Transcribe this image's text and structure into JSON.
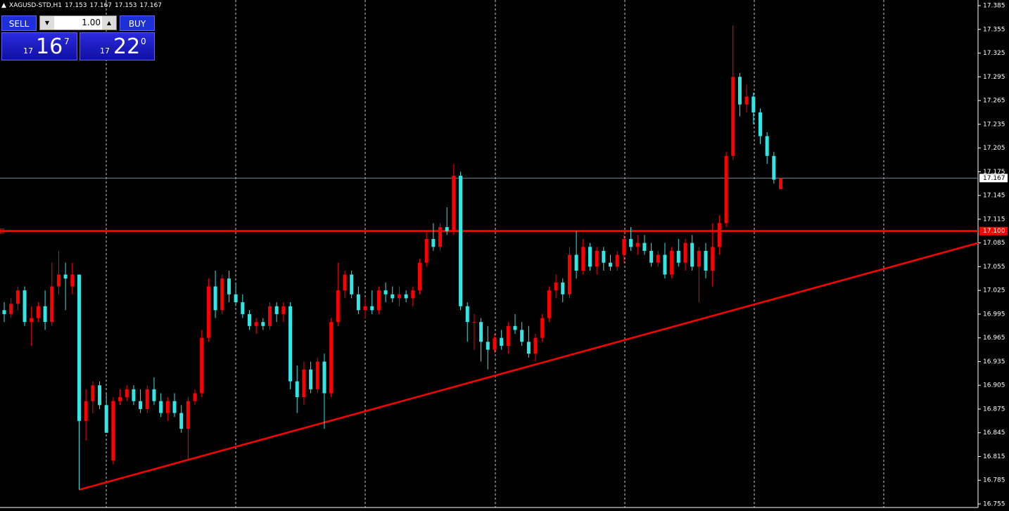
{
  "header": {
    "symbol": "XAGUSD-STD,H1",
    "prices": [
      17.153,
      17.167,
      17.153,
      17.167
    ]
  },
  "trade_panel": {
    "sell": "SELL",
    "buy": "BUY",
    "volume": "1.00",
    "bid": {
      "big": "17",
      "main": "16",
      "sup": "7"
    },
    "ask": {
      "big": "17",
      "main": "22",
      "sup": "0"
    }
  },
  "chart_data": {
    "type": "candlestick",
    "up_color": "#ff0000",
    "down_color": "#33e6e6",
    "ylim": [
      16.755,
      17.385
    ],
    "yticks": [
      17.385,
      17.355,
      17.325,
      17.295,
      17.265,
      17.235,
      17.205,
      17.175,
      17.145,
      17.115,
      17.085,
      17.055,
      17.025,
      16.995,
      16.965,
      16.935,
      16.905,
      16.875,
      16.845,
      16.815,
      16.785,
      16.755
    ],
    "current_price": 17.167,
    "hlines": [
      {
        "value": 17.1,
        "label": "17.100",
        "color": "#ff0000"
      }
    ],
    "trendline": {
      "x": [
        11,
        143
      ],
      "y": [
        16.773,
        17.085
      ],
      "color": "#ff0000"
    },
    "candles": [
      [
        17.0,
        17.01,
        16.985,
        16.995
      ],
      [
        16.995,
        17.015,
        16.99,
        17.008
      ],
      [
        17.008,
        17.03,
        17.0,
        17.025
      ],
      [
        17.025,
        17.03,
        16.98,
        16.985
      ],
      [
        16.985,
        17.005,
        16.955,
        16.99
      ],
      [
        16.99,
        17.01,
        16.985,
        17.005
      ],
      [
        17.005,
        17.025,
        16.975,
        16.985
      ],
      [
        16.985,
        17.06,
        16.98,
        17.03
      ],
      [
        17.03,
        17.075,
        17.02,
        17.045
      ],
      [
        17.045,
        17.06,
        17.0,
        17.04
      ],
      [
        17.03,
        17.06,
        17.02,
        17.045
      ],
      [
        17.045,
        17.045,
        16.773,
        16.86
      ],
      [
        16.86,
        16.9,
        16.835,
        16.885
      ],
      [
        16.885,
        16.91,
        16.87,
        16.905
      ],
      [
        16.905,
        16.91,
        16.875,
        16.88
      ],
      [
        16.88,
        16.895,
        16.845,
        16.845
      ],
      [
        16.81,
        16.89,
        16.805,
        16.885
      ],
      [
        16.885,
        16.9,
        16.88,
        16.89
      ],
      [
        16.89,
        16.905,
        16.885,
        16.9
      ],
      [
        16.9,
        16.905,
        16.88,
        16.885
      ],
      [
        16.885,
        16.9,
        16.87,
        16.875
      ],
      [
        16.875,
        16.905,
        16.87,
        16.9
      ],
      [
        16.9,
        16.915,
        16.88,
        16.885
      ],
      [
        16.885,
        16.895,
        16.865,
        16.87
      ],
      [
        16.87,
        16.89,
        16.86,
        16.885
      ],
      [
        16.885,
        16.895,
        16.865,
        16.87
      ],
      [
        16.87,
        16.88,
        16.845,
        16.85
      ],
      [
        16.85,
        16.89,
        16.81,
        16.885
      ],
      [
        16.885,
        16.9,
        16.88,
        16.895
      ],
      [
        16.895,
        16.975,
        16.89,
        16.965
      ],
      [
        16.965,
        17.04,
        16.96,
        17.03
      ],
      [
        17.03,
        17.05,
        16.99,
        17.0
      ],
      [
        17.0,
        17.045,
        16.995,
        17.04
      ],
      [
        17.04,
        17.05,
        17.01,
        17.02
      ],
      [
        17.02,
        17.035,
        17.005,
        17.01
      ],
      [
        17.01,
        17.02,
        16.99,
        16.995
      ],
      [
        16.995,
        17.0,
        16.975,
        16.98
      ],
      [
        16.98,
        16.99,
        16.97,
        16.985
      ],
      [
        16.985,
        16.99,
        16.975,
        16.98
      ],
      [
        16.98,
        17.01,
        16.975,
        17.005
      ],
      [
        17.005,
        17.01,
        16.985,
        16.995
      ],
      [
        16.995,
        17.01,
        16.985,
        17.005
      ],
      [
        17.005,
        17.01,
        16.9,
        16.91
      ],
      [
        16.91,
        16.93,
        16.87,
        16.89
      ],
      [
        16.89,
        16.935,
        16.88,
        16.925
      ],
      [
        16.925,
        16.935,
        16.895,
        16.9
      ],
      [
        16.9,
        16.94,
        16.895,
        16.935
      ],
      [
        16.935,
        16.945,
        16.85,
        16.895
      ],
      [
        16.895,
        16.99,
        16.89,
        16.985
      ],
      [
        16.985,
        17.06,
        16.98,
        17.025
      ],
      [
        17.025,
        17.05,
        17.015,
        17.045
      ],
      [
        17.045,
        17.05,
        17.015,
        17.02
      ],
      [
        17.02,
        17.03,
        16.995,
        17.0
      ],
      [
        17.0,
        17.015,
        16.99,
        17.005
      ],
      [
        17.005,
        17.025,
        16.995,
        17.0
      ],
      [
        17.0,
        17.03,
        16.995,
        17.025
      ],
      [
        17.025,
        17.035,
        17.01,
        17.02
      ],
      [
        17.02,
        17.03,
        17.01,
        17.015
      ],
      [
        17.015,
        17.03,
        17.005,
        17.02
      ],
      [
        17.02,
        17.025,
        17.01,
        17.015
      ],
      [
        17.015,
        17.03,
        17.005,
        17.025
      ],
      [
        17.025,
        17.065,
        17.02,
        17.06
      ],
      [
        17.06,
        17.1,
        17.055,
        17.09
      ],
      [
        17.09,
        17.11,
        17.075,
        17.08
      ],
      [
        17.08,
        17.11,
        17.075,
        17.105
      ],
      [
        17.105,
        17.13,
        17.095,
        17.1
      ],
      [
        17.1,
        17.185,
        17.095,
        17.17
      ],
      [
        17.17,
        17.175,
        17.0,
        17.005
      ],
      [
        17.005,
        17.01,
        16.96,
        16.985
      ],
      [
        16.985,
        16.995,
        16.95,
        16.985
      ],
      [
        16.985,
        16.99,
        16.935,
        16.96
      ],
      [
        16.96,
        16.98,
        16.925,
        16.95
      ],
      [
        16.95,
        16.97,
        16.945,
        16.965
      ],
      [
        16.965,
        16.975,
        16.95,
        16.955
      ],
      [
        16.955,
        16.985,
        16.945,
        16.98
      ],
      [
        16.98,
        16.995,
        16.97,
        16.975
      ],
      [
        16.975,
        16.985,
        16.955,
        16.96
      ],
      [
        16.96,
        16.98,
        16.94,
        16.945
      ],
      [
        16.945,
        16.97,
        16.935,
        16.965
      ],
      [
        16.965,
        16.995,
        16.96,
        16.99
      ],
      [
        16.99,
        17.03,
        16.985,
        17.025
      ],
      [
        17.025,
        17.045,
        17.015,
        17.035
      ],
      [
        17.035,
        17.04,
        17.01,
        17.02
      ],
      [
        17.02,
        17.08,
        17.015,
        17.07
      ],
      [
        17.07,
        17.1,
        17.04,
        17.05
      ],
      [
        17.05,
        17.09,
        17.045,
        17.08
      ],
      [
        17.08,
        17.085,
        17.05,
        17.055
      ],
      [
        17.055,
        17.08,
        17.045,
        17.075
      ],
      [
        17.075,
        17.08,
        17.05,
        17.06
      ],
      [
        17.06,
        17.07,
        17.05,
        17.055
      ],
      [
        17.055,
        17.075,
        17.05,
        17.07
      ],
      [
        17.07,
        17.095,
        17.06,
        17.09
      ],
      [
        17.09,
        17.105,
        17.075,
        17.08
      ],
      [
        17.08,
        17.095,
        17.07,
        17.085
      ],
      [
        17.085,
        17.095,
        17.07,
        17.075
      ],
      [
        17.075,
        17.085,
        17.055,
        17.06
      ],
      [
        17.06,
        17.075,
        17.055,
        17.07
      ],
      [
        17.07,
        17.085,
        17.04,
        17.045
      ],
      [
        17.045,
        17.08,
        17.04,
        17.075
      ],
      [
        17.075,
        17.09,
        17.055,
        17.06
      ],
      [
        17.06,
        17.09,
        17.05,
        17.085
      ],
      [
        17.085,
        17.095,
        17.05,
        17.055
      ],
      [
        17.055,
        17.08,
        17.01,
        17.075
      ],
      [
        17.075,
        17.085,
        17.04,
        17.05
      ],
      [
        17.05,
        17.11,
        17.03,
        17.08
      ],
      [
        17.08,
        17.12,
        17.07,
        17.11
      ],
      [
        17.11,
        17.2,
        17.105,
        17.195
      ],
      [
        17.195,
        17.36,
        17.19,
        17.295
      ],
      [
        17.295,
        17.3,
        17.245,
        17.26
      ],
      [
        17.26,
        17.285,
        17.25,
        17.27
      ],
      [
        17.27,
        17.275,
        17.235,
        17.25
      ],
      [
        17.25,
        17.255,
        17.21,
        17.22
      ],
      [
        17.22,
        17.225,
        17.185,
        17.195
      ],
      [
        17.195,
        17.2,
        17.16,
        17.165
      ],
      [
        17.153,
        17.167,
        17.153,
        17.167
      ]
    ]
  }
}
